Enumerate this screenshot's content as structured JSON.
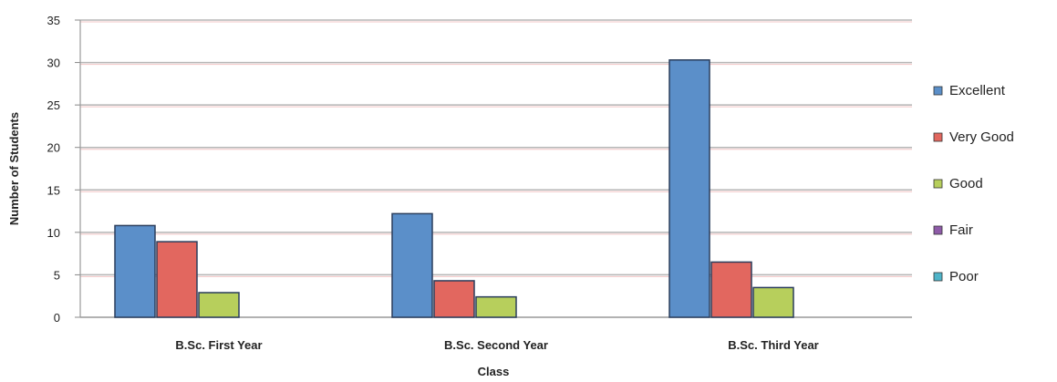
{
  "chart_data": {
    "type": "bar",
    "title": "",
    "xlabel": "Class",
    "ylabel": "Number of Students",
    "ylim": [
      0,
      35
    ],
    "yticks": [
      0,
      5,
      10,
      15,
      20,
      25,
      30,
      35
    ],
    "grid": true,
    "legend_position": "right",
    "categories": [
      "B.Sc. First Year",
      "B.Sc. Second Year",
      "B.Sc. Third Year"
    ],
    "series": [
      {
        "name": "Excellent",
        "color": "#5b8fc9",
        "values": [
          10.8,
          12.2,
          30.3
        ]
      },
      {
        "name": "Very Good",
        "color": "#e2675f",
        "values": [
          8.9,
          4.3,
          6.5
        ]
      },
      {
        "name": "Good",
        "color": "#b7cf5c",
        "values": [
          2.9,
          2.4,
          3.5
        ]
      },
      {
        "name": "Fair",
        "color": "#8e5ba8",
        "values": [
          0,
          0,
          0
        ]
      },
      {
        "name": "Poor",
        "color": "#4fb4c9",
        "values": [
          0,
          0,
          0
        ]
      }
    ]
  }
}
